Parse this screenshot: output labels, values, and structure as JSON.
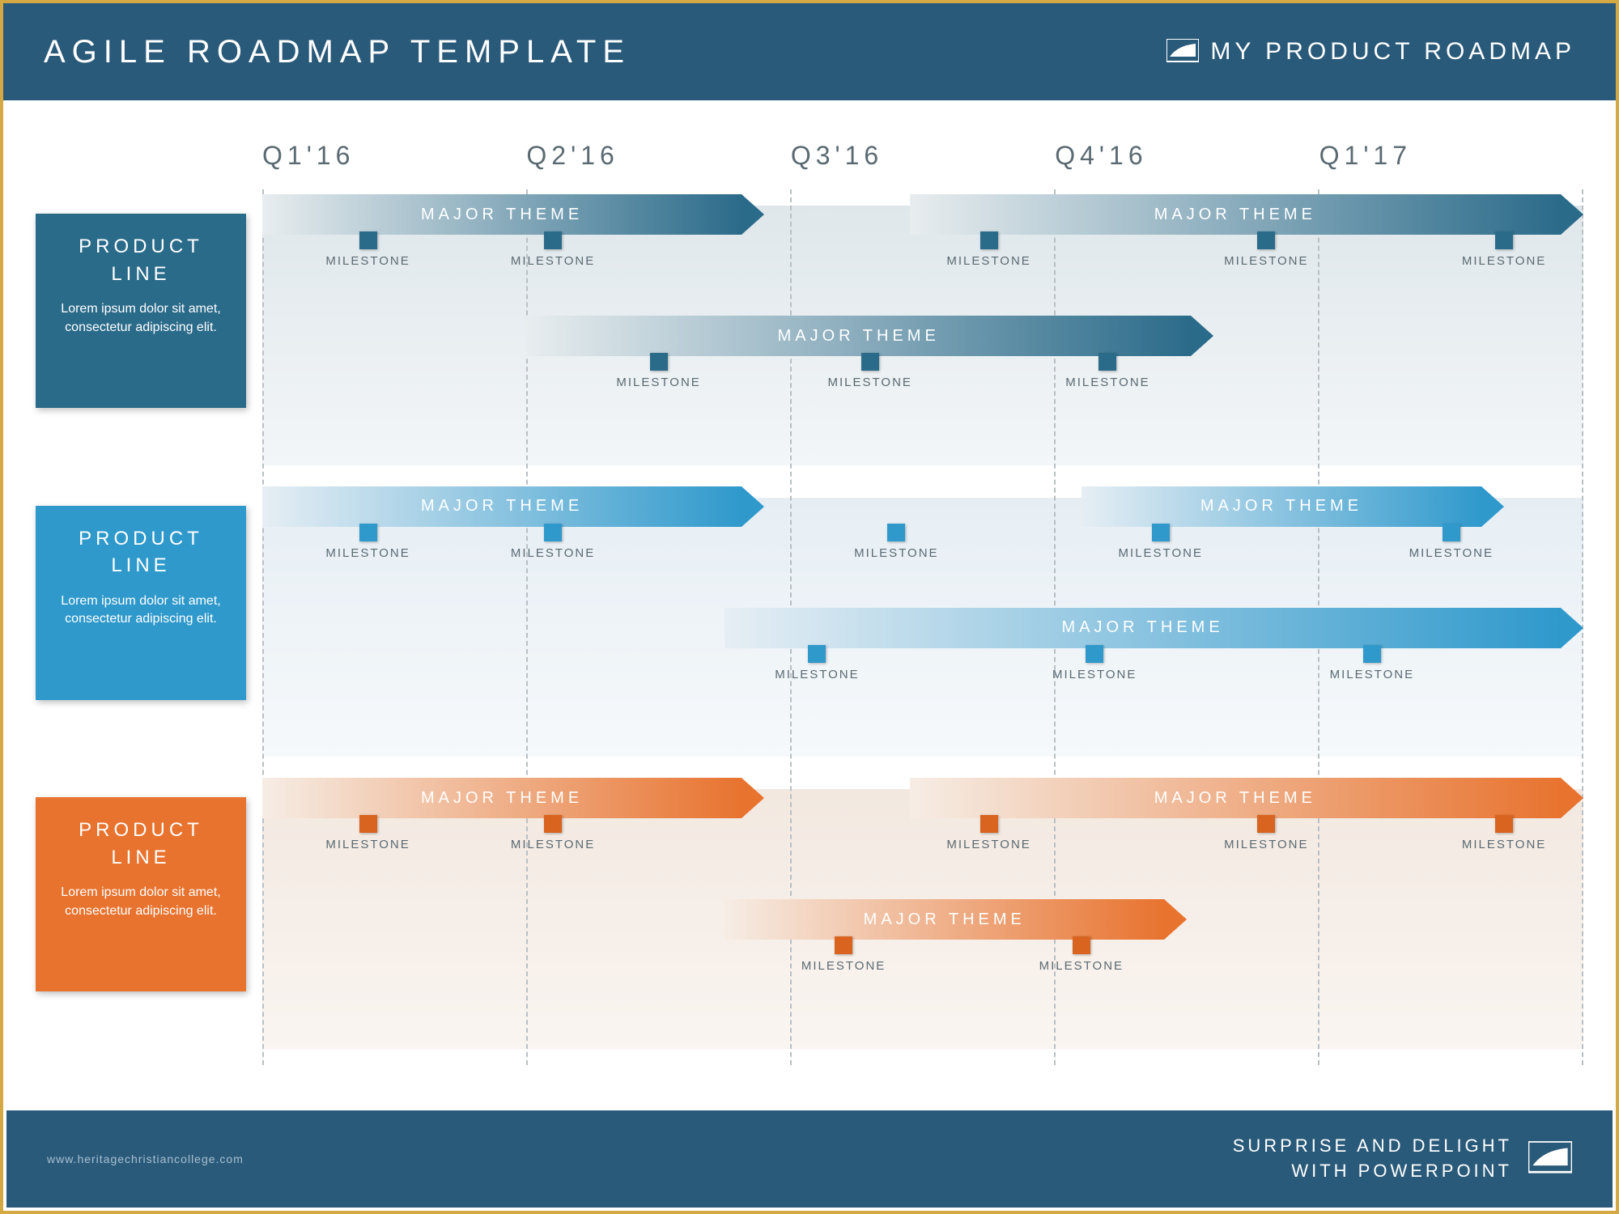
{
  "header": {
    "title": "AGILE ROADMAP TEMPLATE",
    "brand": "MY PRODUCT ROADMAP"
  },
  "footer": {
    "url": "www.heritagechristiancollege.com",
    "tagline1": "SURPRISE AND DELIGHT",
    "tagline2": "WITH POWERPOINT"
  },
  "colors": {
    "header_bg": "#2a5a7a",
    "frame": "#d4a843",
    "grid": "#b8c0c4",
    "text_muted": "#5a6a72"
  },
  "quarters": [
    "Q1'16",
    "Q2'16",
    "Q3'16",
    "Q4'16",
    "Q1'17"
  ],
  "lanes": [
    {
      "title": "PRODUCT LINE",
      "desc": "Lorem ipsum dolor sit amet, consectetur adipiscing elit.",
      "card_color": "#2b6b8a",
      "bg_gradient_from": "#dfe7eb",
      "bg_gradient_to": "#f3f6f8",
      "arrow_gradient_from": "#e8edef",
      "arrow_gradient_to": "#2b6b8a",
      "milestone_color": "#2b6b8a",
      "rows": [
        {
          "arrows": [
            {
              "start_pct": 0,
              "end_pct": 38,
              "label": "MAJOR THEME"
            },
            {
              "start_pct": 49,
              "end_pct": 100,
              "label": "MAJOR THEME"
            }
          ],
          "milestones": [
            {
              "pos_pct": 8,
              "label": "MILESTONE"
            },
            {
              "pos_pct": 22,
              "label": "MILESTONE"
            },
            {
              "pos_pct": 55,
              "label": "MILESTONE"
            },
            {
              "pos_pct": 76,
              "label": "MILESTONE"
            },
            {
              "pos_pct": 94,
              "label": "MILESTONE"
            }
          ]
        },
        {
          "arrows": [
            {
              "start_pct": 20,
              "end_pct": 72,
              "label": "MAJOR THEME"
            }
          ],
          "milestones": [
            {
              "pos_pct": 30,
              "label": "MILESTONE"
            },
            {
              "pos_pct": 46,
              "label": "MILESTONE"
            },
            {
              "pos_pct": 64,
              "label": "MILESTONE"
            }
          ]
        }
      ]
    },
    {
      "title": "PRODUCT LINE",
      "desc": "Lorem ipsum dolor sit amet, consectetur adipiscing elit.",
      "card_color": "#2f99cc",
      "bg_gradient_from": "#e6eef4",
      "bg_gradient_to": "#f6f9fb",
      "arrow_gradient_from": "#e6eef4",
      "arrow_gradient_to": "#2f99cc",
      "milestone_color": "#2f99cc",
      "rows": [
        {
          "arrows": [
            {
              "start_pct": 0,
              "end_pct": 38,
              "label": "MAJOR THEME"
            },
            {
              "start_pct": 62,
              "end_pct": 94,
              "label": "MAJOR THEME"
            }
          ],
          "milestones": [
            {
              "pos_pct": 8,
              "label": "MILESTONE"
            },
            {
              "pos_pct": 22,
              "label": "MILESTONE"
            },
            {
              "pos_pct": 48,
              "label": "MILESTONE"
            },
            {
              "pos_pct": 68,
              "label": "MILESTONE"
            },
            {
              "pos_pct": 90,
              "label": "MILESTONE"
            }
          ]
        },
        {
          "arrows": [
            {
              "start_pct": 35,
              "end_pct": 100,
              "label": "MAJOR THEME"
            }
          ],
          "milestones": [
            {
              "pos_pct": 42,
              "label": "MILESTONE"
            },
            {
              "pos_pct": 63,
              "label": "MILESTONE"
            },
            {
              "pos_pct": 84,
              "label": "MILESTONE"
            }
          ]
        }
      ]
    },
    {
      "title": "PRODUCT LINE",
      "desc": "Lorem ipsum dolor sit amet, consectetur adipiscing elit.",
      "card_color": "#e8732f",
      "bg_gradient_from": "#f2e8e0",
      "bg_gradient_to": "#faf5f1",
      "arrow_gradient_from": "#f6ede5",
      "arrow_gradient_to": "#e8732f",
      "milestone_color": "#d8641f",
      "rows": [
        {
          "arrows": [
            {
              "start_pct": 0,
              "end_pct": 38,
              "label": "MAJOR THEME"
            },
            {
              "start_pct": 49,
              "end_pct": 100,
              "label": "MAJOR THEME"
            }
          ],
          "milestones": [
            {
              "pos_pct": 8,
              "label": "MILESTONE"
            },
            {
              "pos_pct": 22,
              "label": "MILESTONE"
            },
            {
              "pos_pct": 55,
              "label": "MILESTONE"
            },
            {
              "pos_pct": 76,
              "label": "MILESTONE"
            },
            {
              "pos_pct": 94,
              "label": "MILESTONE"
            }
          ]
        },
        {
          "arrows": [
            {
              "start_pct": 35,
              "end_pct": 70,
              "label": "MAJOR THEME"
            }
          ],
          "milestones": [
            {
              "pos_pct": 44,
              "label": "MILESTONE"
            },
            {
              "pos_pct": 62,
              "label": "MILESTONE"
            }
          ]
        }
      ]
    }
  ]
}
